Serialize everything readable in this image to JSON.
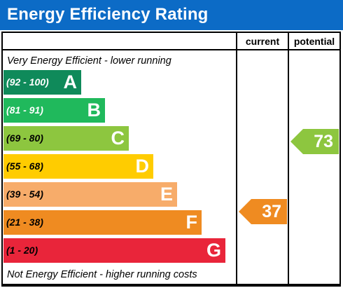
{
  "header": {
    "title": "Energy Efficiency Rating"
  },
  "columns": {
    "current": "current",
    "potential": "potential"
  },
  "captions": {
    "top": "Very Energy Efficient - lower running",
    "bottom": "Not Energy Efficient - higher running costs"
  },
  "bands": [
    {
      "range": "(92 - 100)",
      "letter": "A",
      "color": "#0f8a5a",
      "range_color": "#ffffff"
    },
    {
      "range": "(81 - 91)",
      "letter": "B",
      "color": "#20b95c",
      "range_color": "#ffffff"
    },
    {
      "range": "(69 - 80)",
      "letter": "C",
      "color": "#8dc63f",
      "range_color": "#000000"
    },
    {
      "range": "(55 - 68)",
      "letter": "D",
      "color": "#ffcc00",
      "range_color": "#000000"
    },
    {
      "range": "(39 - 54)",
      "letter": "E",
      "color": "#f7ac6a",
      "range_color": "#000000"
    },
    {
      "range": "(21 - 38)",
      "letter": "F",
      "color": "#ef8b21",
      "range_color": "#000000"
    },
    {
      "range": "(1 - 20)",
      "letter": "G",
      "color": "#e9253a",
      "range_color": "#000000"
    }
  ],
  "current": {
    "value": "37",
    "band": "F",
    "color": "#ef8b21"
  },
  "potential": {
    "value": "73",
    "band": "C",
    "color": "#8dc63f"
  }
}
